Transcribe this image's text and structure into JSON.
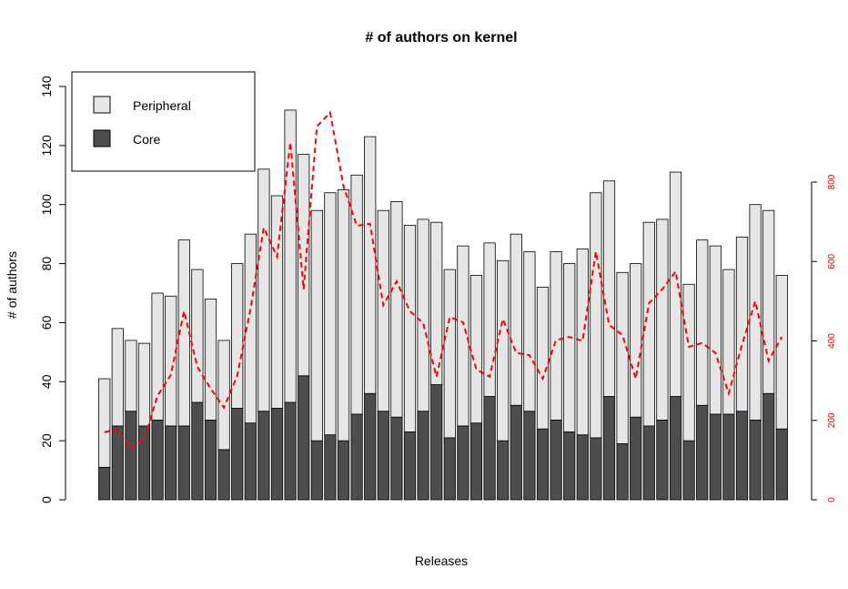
{
  "chart_data": {
    "type": "bar",
    "title": "# of authors on kernel",
    "xlabel": "Releases",
    "ylabel": "# of authors",
    "ylim": [
      0,
      140
    ],
    "yticks": [
      0,
      20,
      40,
      60,
      80,
      100,
      120,
      140
    ],
    "y2lim": [
      0,
      800
    ],
    "y2ticks": [
      0,
      200,
      400,
      600,
      800
    ],
    "stacked": true,
    "legend_position": "top-left",
    "series": [
      {
        "name": "Peripheral",
        "color": "#e6e6e6",
        "values": [
          30,
          33,
          24,
          28,
          43,
          44,
          63,
          45,
          41,
          37,
          49,
          64,
          82,
          72,
          99,
          75,
          78,
          82,
          85,
          81,
          87,
          68,
          73,
          70,
          65,
          55,
          57,
          61,
          50,
          52,
          61,
          58,
          54,
          48,
          57,
          57,
          63,
          83,
          73,
          58,
          52,
          69,
          68,
          76,
          53,
          56,
          57,
          49,
          59,
          73,
          62,
          52
        ]
      },
      {
        "name": "Core",
        "color": "#4d4d4d",
        "values": [
          11,
          25,
          30,
          25,
          27,
          25,
          25,
          33,
          27,
          17,
          31,
          26,
          30,
          31,
          33,
          42,
          20,
          22,
          20,
          29,
          36,
          30,
          28,
          23,
          30,
          39,
          21,
          25,
          26,
          35,
          20,
          32,
          30,
          24,
          27,
          23,
          22,
          21,
          35,
          19,
          28,
          25,
          27,
          35,
          20,
          32,
          29,
          29,
          30,
          27,
          36,
          24
        ]
      }
    ],
    "line_series": {
      "color": "#ff0000",
      "axis": "right",
      "style": "dashed",
      "values": [
        170,
        178,
        130,
        152,
        262,
        314,
        475,
        335,
        280,
        232,
        312,
        480,
        685,
        612,
        900,
        530,
        940,
        975,
        790,
        690,
        695,
        490,
        550,
        475,
        445,
        310,
        460,
        447,
        328,
        310,
        455,
        370,
        364,
        305,
        402,
        410,
        400,
        625,
        440,
        415,
        305,
        495,
        530,
        575,
        385,
        395,
        370,
        268,
        390,
        500,
        350,
        410
      ]
    }
  }
}
